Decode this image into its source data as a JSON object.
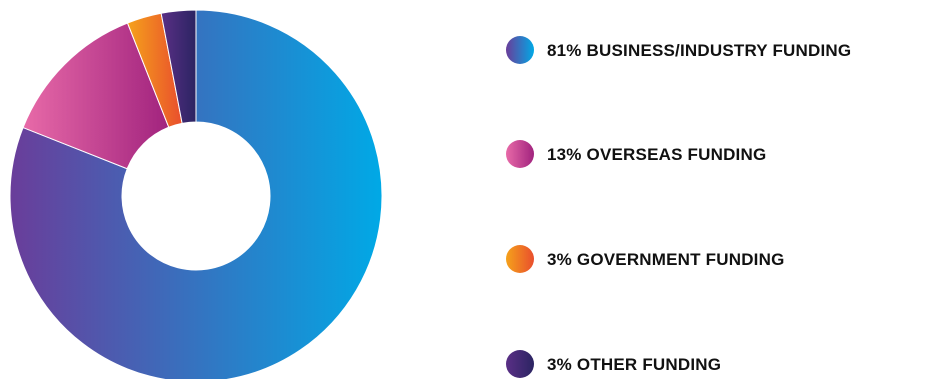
{
  "chart_data": {
    "type": "pie",
    "variant": "donut",
    "title": "",
    "legend_placement": "right",
    "slices": [
      {
        "label": "81% BUSINESS/INDUSTRY FUNDING",
        "value": 81,
        "colors": [
          "#6a3d9a",
          "#00a9e6"
        ]
      },
      {
        "label": "13% OVERSEAS FUNDING",
        "value": 13,
        "colors": [
          "#e86aa8",
          "#a1237e"
        ]
      },
      {
        "label": "3% GOVERNMENT FUNDING",
        "value": 3,
        "colors": [
          "#f5a21b",
          "#e94e2d"
        ]
      },
      {
        "label": "3% OTHER FUNDING",
        "value": 3,
        "colors": [
          "#5a2f86",
          "#2b2462"
        ]
      }
    ]
  }
}
